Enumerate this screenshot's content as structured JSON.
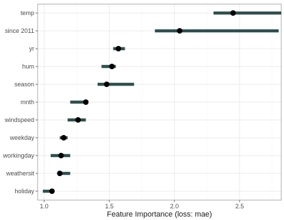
{
  "chart_data": {
    "type": "dot-range",
    "title": "",
    "xlabel": "Feature Importance (loss: mae)",
    "ylabel": "",
    "xlim": [
      0.95,
      2.82
    ],
    "x_ticks": [
      "1.0",
      "1.5",
      "2.0",
      "2.5"
    ],
    "grid": true,
    "colors": {
      "range": "#2f4f4f",
      "point": "#000000",
      "grid_major": "#ebebeb",
      "grid_minor": "#f5f5f5",
      "panel_border": "#999999"
    },
    "features": [
      {
        "label": "temp",
        "value": 2.45,
        "low": 2.3,
        "high": 2.82
      },
      {
        "label": "since 2011",
        "value": 2.04,
        "low": 1.85,
        "high": 2.8
      },
      {
        "label": "yr",
        "value": 1.57,
        "low": 1.53,
        "high": 1.62
      },
      {
        "label": "hum",
        "value": 1.52,
        "low": 1.44,
        "high": 1.55
      },
      {
        "label": "season",
        "value": 1.48,
        "low": 1.41,
        "high": 1.69
      },
      {
        "label": "mnth",
        "value": 1.32,
        "low": 1.2,
        "high": 1.32
      },
      {
        "label": "windspeed",
        "value": 1.26,
        "low": 1.18,
        "high": 1.32
      },
      {
        "label": "weekday",
        "value": 1.15,
        "low": 1.12,
        "high": 1.18
      },
      {
        "label": "workingday",
        "value": 1.13,
        "low": 1.05,
        "high": 1.2
      },
      {
        "label": "weathersit",
        "value": 1.12,
        "low": 1.12,
        "high": 1.2
      },
      {
        "label": "holiday",
        "value": 1.06,
        "low": 0.99,
        "high": 1.07
      }
    ]
  }
}
